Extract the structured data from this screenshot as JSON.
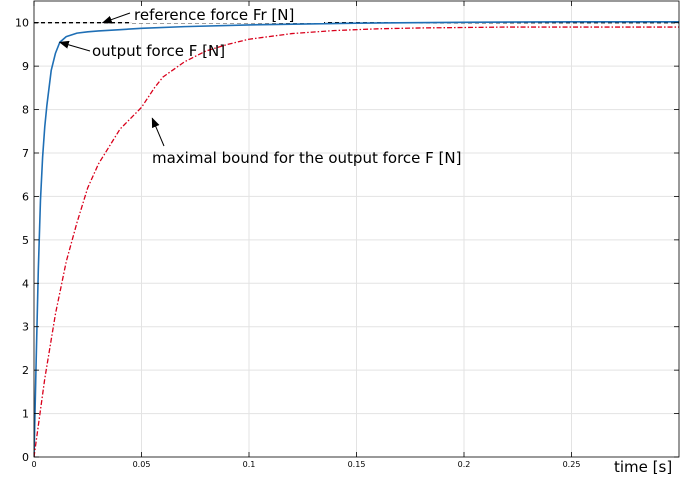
{
  "chart_data": {
    "type": "line",
    "title": "",
    "xlabel": "time [s]",
    "ylabel": "",
    "xlim": [
      0,
      0.3
    ],
    "ylim": [
      0,
      10.5
    ],
    "grid": true,
    "legend": "none",
    "x_ticks": [
      0,
      0.05,
      0.1,
      0.15,
      0.2,
      0.25
    ],
    "x_tick_labels": [
      "0",
      "0.05",
      "0.1",
      "0.15",
      "0.2",
      "0.25"
    ],
    "y_ticks": [
      0,
      1,
      2,
      3,
      4,
      5,
      6,
      7,
      8,
      9,
      10
    ],
    "y_tick_labels": [
      "0",
      "1",
      "2",
      "3",
      "4",
      "5",
      "6",
      "7",
      "8",
      "9",
      "10"
    ],
    "series": [
      {
        "id": "reference",
        "style": "dashed",
        "color": "#000000",
        "x": [
          0,
          0.3
        ],
        "y": [
          10,
          10
        ]
      },
      {
        "id": "output",
        "style": "solid",
        "color": "#1f6fb5",
        "x": [
          0,
          0.001,
          0.002,
          0.003,
          0.004,
          0.005,
          0.006,
          0.008,
          0.01,
          0.012,
          0.015,
          0.02,
          0.025,
          0.03,
          0.04,
          0.05,
          0.07,
          0.1,
          0.15,
          0.2,
          0.25,
          0.3
        ],
        "y": [
          0,
          2.2,
          4.3,
          5.9,
          6.9,
          7.6,
          8.1,
          8.9,
          9.3,
          9.55,
          9.68,
          9.76,
          9.79,
          9.81,
          9.84,
          9.87,
          9.91,
          9.95,
          9.99,
          10.01,
          10.02,
          10.02
        ]
      },
      {
        "id": "bound",
        "style": "dashdot",
        "color": "#d9001b",
        "x": [
          0,
          0.005,
          0.01,
          0.015,
          0.02,
          0.025,
          0.03,
          0.04,
          0.05,
          0.056,
          0.06,
          0.07,
          0.08,
          0.09,
          0.1,
          0.12,
          0.14,
          0.16,
          0.18,
          0.2,
          0.22,
          0.25,
          0.28,
          0.3
        ],
        "y": [
          0,
          1.8,
          3.3,
          4.5,
          5.4,
          6.2,
          6.75,
          7.55,
          8.05,
          8.5,
          8.75,
          9.1,
          9.35,
          9.5,
          9.62,
          9.75,
          9.82,
          9.86,
          9.88,
          9.89,
          9.9,
          9.9,
          9.9,
          9.9
        ]
      }
    ],
    "annotations": [
      {
        "text": "reference force Fr [N]",
        "target": [
          0.032,
          10
        ]
      },
      {
        "text": "output force F [N]",
        "target": [
          0.012,
          9.55
        ]
      },
      {
        "text": "maximal bound for the output force F [N]",
        "target": [
          0.055,
          7.8
        ]
      }
    ]
  }
}
